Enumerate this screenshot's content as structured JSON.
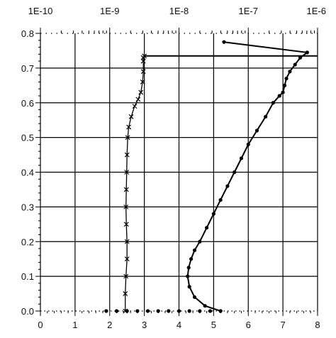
{
  "chart_data": {
    "type": "line",
    "title": "",
    "xlabel": "",
    "ylabel": "",
    "grid": true,
    "xlim_bottom": [
      0,
      8
    ],
    "xlim_top_log": [
      1e-10,
      1e-06
    ],
    "ylim": [
      0.0,
      0.8
    ],
    "x_ticks_bottom": [
      "0",
      "1",
      "2",
      "3",
      "4",
      "5",
      "6",
      "7",
      "8"
    ],
    "x_ticks_top": [
      "1E-10",
      "1E-9",
      "1E-8",
      "1E-7",
      "1E-6"
    ],
    "y_ticks": [
      "0.0",
      "0.1",
      "0.2",
      "0.3",
      "0.4",
      "0.5",
      "0.6",
      "0.7",
      "0.8"
    ],
    "series": [
      {
        "marker": "x",
        "axis": "bottom",
        "x": [
          2.45,
          2.45,
          2.47,
          2.5,
          2.5,
          2.48,
          2.47,
          2.48,
          2.49,
          2.5,
          2.52,
          2.55,
          2.62,
          2.72,
          2.82,
          2.9,
          2.95,
          2.97,
          2.97,
          2.97,
          3.0
        ],
        "y": [
          0.0,
          0.05,
          0.1,
          0.15,
          0.2,
          0.25,
          0.3,
          0.35,
          0.4,
          0.45,
          0.5,
          0.53,
          0.56,
          0.59,
          0.61,
          0.63,
          0.66,
          0.69,
          0.72,
          0.73,
          0.735
        ]
      },
      {
        "marker": "dot",
        "axis": "bottom",
        "x": [
          5.2,
          4.75,
          4.45,
          4.3,
          4.25,
          4.28,
          4.35,
          4.45,
          4.6,
          4.8,
          5.0,
          5.2,
          5.4,
          5.6,
          5.8,
          6.0,
          6.25,
          6.5,
          6.72,
          6.9,
          7.0,
          7.05,
          7.1,
          7.2,
          7.35,
          7.5,
          7.7,
          5.3
        ],
        "y": [
          0.0,
          0.015,
          0.04,
          0.07,
          0.1,
          0.125,
          0.15,
          0.175,
          0.2,
          0.24,
          0.28,
          0.32,
          0.36,
          0.4,
          0.44,
          0.48,
          0.52,
          0.56,
          0.6,
          0.62,
          0.63,
          0.65,
          0.67,
          0.69,
          0.71,
          0.73,
          0.745,
          0.775
        ]
      },
      {
        "marker": "dot",
        "axis": "bottom",
        "x": [
          1.9,
          2.2,
          2.5,
          2.8,
          3.1,
          3.4,
          3.7,
          4.0,
          4.3,
          4.6,
          4.9,
          5.2
        ],
        "y": [
          0.0,
          0.0,
          0.0,
          0.0,
          0.0,
          0.0,
          0.0,
          0.0,
          0.0,
          0.0,
          0.0,
          0.0
        ]
      },
      {
        "marker": "none",
        "axis": "bottom",
        "x": [
          3.0,
          8.0
        ],
        "y": [
          0.735,
          0.735
        ]
      }
    ]
  }
}
